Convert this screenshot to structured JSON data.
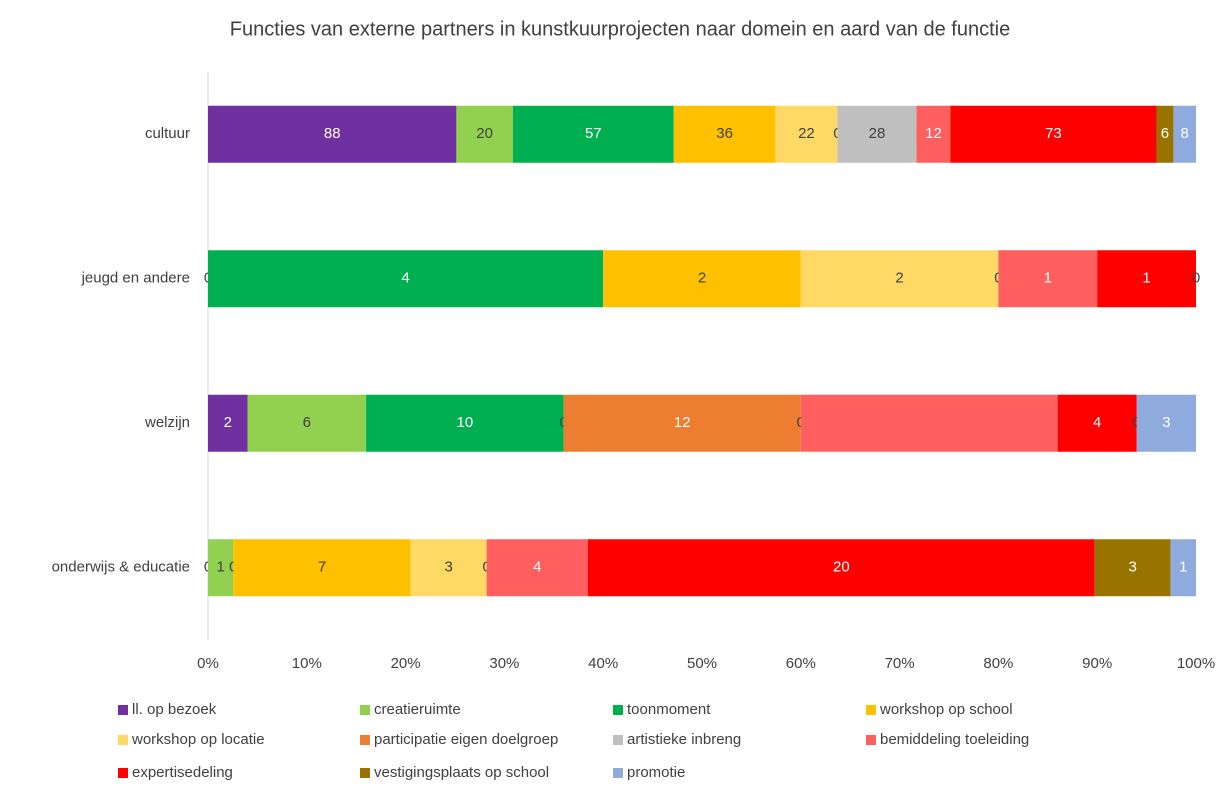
{
  "chart_data": {
    "type": "stacked_bar_100",
    "title": "Functies van externe partners in kunstkuurprojecten naar domein en aard van de functie",
    "categories": [
      "cultuur",
      "jeugd en andere",
      "welzijn",
      "onderwijs & educatie"
    ],
    "series": [
      {
        "name": "ll. op bezoek",
        "color": "#7030a0",
        "values": [
          88,
          0,
          2,
          0
        ]
      },
      {
        "name": "creatieruimte",
        "color": "#92d050",
        "values": [
          20,
          null,
          6,
          1
        ]
      },
      {
        "name": "toonmoment",
        "color": "#00b050",
        "values": [
          57,
          4,
          10,
          0
        ]
      },
      {
        "name": "workshop op school",
        "color": "#ffc000",
        "values": [
          36,
          2,
          0,
          7
        ]
      },
      {
        "name": "workshop op locatie",
        "color": "#ffd966",
        "values": [
          22,
          2,
          null,
          3
        ]
      },
      {
        "name": "participatie eigen doelgroep",
        "color": "#ed7d31",
        "values": [
          0,
          0,
          12,
          0
        ]
      },
      {
        "name": "artistieke inbreng",
        "color": "#bfbfbf",
        "values": [
          28,
          null,
          0,
          null
        ]
      },
      {
        "name": "bemiddeling toeleiding",
        "color": "#ff5f5f",
        "values": [
          12,
          1,
          13,
          4
        ],
        "value_labels": [
          "12",
          "1",
          null,
          "4"
        ]
      },
      {
        "name": "expertisedeling",
        "color": "#ff0000",
        "values": [
          73,
          1,
          4,
          20
        ]
      },
      {
        "name": "vestigingsplaats op school",
        "color": "#997300",
        "values": [
          6,
          null,
          0,
          3
        ]
      },
      {
        "name": "promotie",
        "color": "#8faadc",
        "values": [
          8,
          0,
          3,
          1
        ]
      }
    ],
    "xlim": [
      0,
      100
    ],
    "xticks": [
      {
        "value": 0,
        "label": "0%"
      },
      {
        "value": 10,
        "label": "10%"
      },
      {
        "value": 20,
        "label": "20%"
      },
      {
        "value": 30,
        "label": "30%"
      },
      {
        "value": 40,
        "label": "40%"
      },
      {
        "value": 50,
        "label": "50%"
      },
      {
        "value": 60,
        "label": "60%"
      },
      {
        "value": 70,
        "label": "70%"
      },
      {
        "value": 80,
        "label": "80%"
      },
      {
        "value": 90,
        "label": "90%"
      },
      {
        "value": 100,
        "label": "100%"
      }
    ],
    "legend": "bottom"
  }
}
